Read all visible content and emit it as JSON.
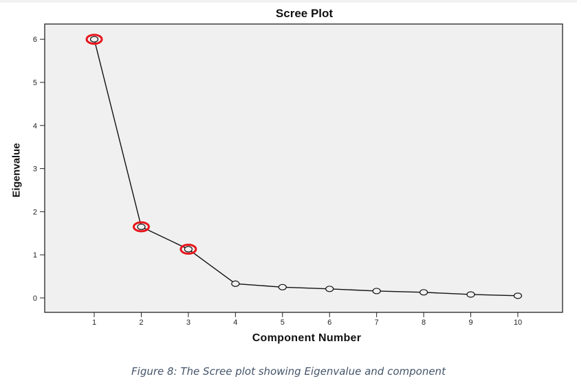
{
  "chart_data": {
    "type": "line",
    "title": "Scree Plot",
    "xlabel": "Component Number",
    "ylabel": "Eigenvalue",
    "x": [
      1,
      2,
      3,
      4,
      5,
      6,
      7,
      8,
      9,
      10
    ],
    "series": [
      {
        "name": "Eigenvalue",
        "values": [
          6.0,
          1.65,
          1.13,
          0.33,
          0.25,
          0.21,
          0.16,
          0.13,
          0.08,
          0.05
        ]
      }
    ],
    "highlighted_points": [
      1,
      2,
      3
    ],
    "highlight_color": "#e8141c",
    "xticks": [
      "1",
      "2",
      "3",
      "4",
      "5",
      "6",
      "7",
      "8",
      "9",
      "10"
    ],
    "yticks": [
      "0",
      "1",
      "2",
      "3",
      "4",
      "5",
      "6"
    ],
    "xlim": [
      0,
      11
    ],
    "ylim": [
      -0.33,
      6.35
    ],
    "grid": false,
    "legend": "none",
    "plot_background": "#f0f0f0"
  },
  "caption": "Figure 8: The Scree plot showing Eigenvalue and component"
}
